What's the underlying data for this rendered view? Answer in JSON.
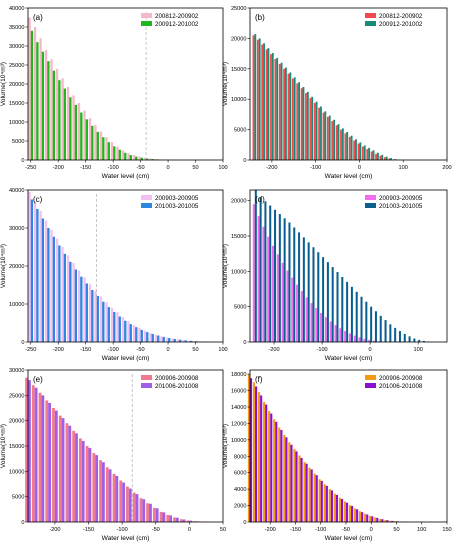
{
  "chart_data": [
    {
      "type": "bar",
      "panel_label": "(a)",
      "xlabel": "Water level (cm)",
      "ylabel": "Volume(10⁴m³)",
      "xlim": [
        -255,
        100
      ],
      "ylim": [
        0,
        40000
      ],
      "xticks": [
        -250,
        -200,
        -150,
        -100,
        -50,
        0,
        50,
        100
      ],
      "yticks": [
        0,
        5000,
        10000,
        15000,
        20000,
        25000,
        30000,
        35000,
        40000
      ],
      "x_step": 10,
      "x_start": -250,
      "threshold_x": -40,
      "legend_position": "top-right",
      "series": [
        {
          "name": "200812-200902",
          "color": "#f6b8c6",
          "values": [
            37500,
            35000,
            32000,
            29000,
            26500,
            24000,
            21500,
            19200,
            17000,
            15000,
            13000,
            11000,
            9200,
            7500,
            6000,
            4700,
            3500,
            2500,
            1800,
            1300,
            900,
            600,
            400,
            250,
            150,
            100,
            60,
            40,
            25,
            15,
            10,
            5,
            0,
            0,
            0,
            0
          ]
        },
        {
          "name": "200912-201002",
          "color": "#22b51e",
          "values": [
            34000,
            31000,
            28500,
            26000,
            23500,
            21000,
            18800,
            16500,
            14500,
            12500,
            10700,
            9000,
            7400,
            6000,
            4700,
            3600,
            2700,
            1900,
            1300,
            900,
            600,
            380,
            250,
            150,
            90,
            60,
            40,
            25,
            15,
            10,
            5,
            3,
            0,
            0,
            0,
            0
          ]
        }
      ]
    },
    {
      "type": "bar",
      "panel_label": "(b)",
      "xlabel": "Water level (cm)",
      "ylabel": "Volume(10⁴m³)",
      "xlim": [
        -250,
        200
      ],
      "ylim": [
        0,
        25000
      ],
      "xticks": [
        -200,
        -100,
        0,
        100,
        200
      ],
      "yticks": [
        0,
        5000,
        10000,
        15000,
        20000,
        25000
      ],
      "x_step": 10,
      "x_start": -240,
      "legend_position": "top-right",
      "series": [
        {
          "name": "200812-200902",
          "color": "#f24a4a",
          "values": [
            20500,
            19800,
            19000,
            18200,
            17400,
            16600,
            15800,
            15000,
            14200,
            13400,
            12600,
            11800,
            11000,
            10200,
            9400,
            8600,
            7800,
            7100,
            6400,
            5700,
            5000,
            4400,
            3800,
            3200,
            2700,
            2200,
            1800,
            1400,
            1000,
            700,
            450,
            250,
            100,
            40,
            10,
            0,
            0,
            0,
            0,
            0,
            0,
            0,
            0,
            0
          ]
        },
        {
          "name": "200912-201002",
          "color": "#1a8a78",
          "values": [
            20700,
            20000,
            19200,
            18400,
            17600,
            16800,
            16000,
            15200,
            14400,
            13600,
            12800,
            12000,
            11200,
            10400,
            9600,
            8800,
            8000,
            7300,
            6600,
            5900,
            5200,
            4600,
            4000,
            3400,
            2900,
            2400,
            2000,
            1600,
            1200,
            850,
            550,
            320,
            150,
            60,
            20,
            5,
            0,
            0,
            0,
            0,
            0,
            0,
            0,
            0
          ]
        }
      ]
    },
    {
      "type": "bar",
      "panel_label": "(c)",
      "xlabel": "Water level (cm)",
      "ylabel": "Volume(10⁴m³)",
      "xlim": [
        -255,
        100
      ],
      "ylim": [
        0,
        40000
      ],
      "xticks": [
        -250,
        -200,
        -150,
        -100,
        -50,
        0,
        50,
        100
      ],
      "yticks": [
        0,
        10000,
        20000,
        30000,
        40000
      ],
      "x_step": 10,
      "x_start": -250,
      "threshold_x": -130,
      "legend_position": "top-right",
      "series": [
        {
          "name": "200903-200905",
          "color": "#f3c0f2",
          "values": [
            39500,
            37000,
            34500,
            32000,
            29500,
            27200,
            25000,
            22800,
            20800,
            18800,
            17000,
            15200,
            13500,
            12000,
            10500,
            9000,
            7800,
            6600,
            5500,
            4500,
            3700,
            3000,
            2400,
            1900,
            1500,
            1200,
            900,
            700,
            500,
            350,
            250,
            150,
            100,
            60,
            30,
            15
          ]
        },
        {
          "name": "201003-201005",
          "color": "#2f86e0",
          "values": [
            37500,
            35000,
            32500,
            30000,
            27700,
            25400,
            23200,
            21100,
            19100,
            17200,
            15400,
            13700,
            12100,
            10600,
            9200,
            7900,
            6700,
            5600,
            4700,
            3900,
            3200,
            2600,
            2100,
            1700,
            1350,
            1050,
            800,
            600,
            430,
            300,
            200,
            130,
            80,
            45,
            20,
            10
          ]
        }
      ]
    },
    {
      "type": "bar",
      "panel_label": "(d)",
      "xlabel": "Water level (cm)",
      "ylabel": "Volume(10⁴m³)",
      "xlim": [
        -250,
        160
      ],
      "ylim": [
        0,
        21500
      ],
      "xticks": [
        -200,
        -100,
        0,
        100
      ],
      "yticks": [
        0,
        5000,
        10000,
        15000,
        20000
      ],
      "x_step": 10,
      "x_start": -240,
      "legend_position": "top-right",
      "series": [
        {
          "name": "200903-200905",
          "color": "#f26cf0",
          "values": [
            19500,
            17800,
            16300,
            14900,
            13600,
            12400,
            11200,
            10100,
            9100,
            8100,
            7200,
            6300,
            5500,
            4800,
            4100,
            3500,
            2900,
            2400,
            1950,
            1550,
            1200,
            900,
            650,
            450,
            300,
            180,
            100,
            50,
            20,
            5,
            0,
            0,
            0,
            0,
            0,
            0,
            0,
            0,
            0
          ]
        },
        {
          "name": "201003-201005",
          "color": "#0b5f8f",
          "values": [
            21500,
            20500,
            19900,
            19300,
            18700,
            18100,
            17500,
            16900,
            16200,
            15500,
            14800,
            14100,
            13400,
            12700,
            12000,
            11300,
            10600,
            9900,
            9200,
            8500,
            7800,
            7100,
            6400,
            5700,
            5000,
            4350,
            3700,
            3100,
            2500,
            2000,
            1550,
            1150,
            800,
            500,
            300,
            150,
            60,
            20,
            5
          ]
        }
      ]
    },
    {
      "type": "bar",
      "panel_label": "(e)",
      "xlabel": "Water level (cm)",
      "ylabel": "Volume(10⁴m³)",
      "xlim": [
        -240,
        50
      ],
      "ylim": [
        0,
        30000
      ],
      "xticks": [
        -200,
        -150,
        -100,
        -50,
        0,
        50
      ],
      "yticks": [
        0,
        5000,
        10000,
        15000,
        20000,
        25000,
        30000
      ],
      "x_step": 10,
      "x_start": -240,
      "threshold_x": -85,
      "legend_position": "top-right",
      "series": [
        {
          "name": "200906-200908",
          "color": "#f07a8c",
          "values": [
            28500,
            27000,
            25500,
            24000,
            22500,
            21000,
            19500,
            18000,
            16500,
            15000,
            13600,
            12200,
            10800,
            9500,
            8200,
            7000,
            5800,
            4700,
            3700,
            2800,
            2000,
            1400,
            900,
            550,
            300,
            150,
            70,
            30,
            10
          ]
        },
        {
          "name": "201006-201008",
          "color": "#a35ee8",
          "values": [
            28000,
            26500,
            25000,
            23500,
            22000,
            20500,
            19000,
            17500,
            16000,
            14600,
            13200,
            11800,
            10400,
            9100,
            7800,
            6600,
            5500,
            4500,
            3600,
            2700,
            1900,
            1300,
            850,
            500,
            270,
            130,
            60,
            25,
            8
          ]
        }
      ]
    },
    {
      "type": "bar",
      "panel_label": "(f)",
      "xlabel": "Water level (cm)",
      "ylabel": "Volume(10⁴m³)",
      "xlim": [
        -240,
        150
      ],
      "ylim": [
        0,
        18500
      ],
      "xticks": [
        -200,
        -150,
        -100,
        -50,
        0,
        50,
        100,
        150
      ],
      "yticks": [
        0,
        2000,
        4000,
        6000,
        8000,
        10000,
        12000,
        14000,
        16000,
        18000
      ],
      "x_step": 10,
      "x_start": -240,
      "legend_position": "top-right",
      "series": [
        {
          "name": "200906-200908",
          "color": "#f59a10",
          "values": [
            18000,
            17000,
            15800,
            14600,
            13500,
            12500,
            11500,
            10600,
            9700,
            8900,
            8100,
            7300,
            6600,
            5900,
            5200,
            4600,
            4000,
            3450,
            2950,
            2500,
            2050,
            1650,
            1300,
            1000,
            750,
            550,
            380,
            250,
            150,
            90,
            50,
            25,
            10,
            0,
            0,
            0,
            0,
            0,
            0
          ]
        },
        {
          "name": "201006-201008",
          "color": "#8a0fcf",
          "values": [
            17500,
            16500,
            15400,
            14300,
            13200,
            12200,
            11200,
            10300,
            9400,
            8600,
            7800,
            7100,
            6400,
            5700,
            5000,
            4400,
            3850,
            3300,
            2800,
            2350,
            1950,
            1550,
            1200,
            920,
            690,
            500,
            340,
            220,
            130,
            80,
            40,
            20,
            8,
            0,
            0,
            0,
            0,
            0,
            0
          ]
        }
      ]
    }
  ]
}
